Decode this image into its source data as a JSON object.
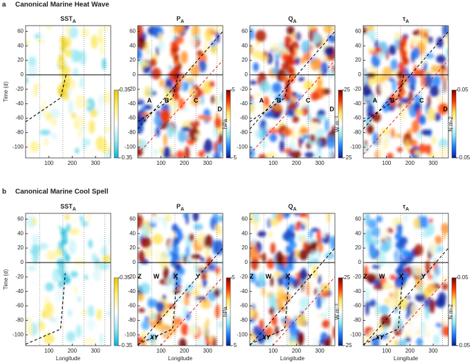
{
  "figure": {
    "rows": [
      {
        "label": "a",
        "title": "Canonical Marine Heat Wave"
      },
      {
        "label": "b",
        "title": "Canonical Marine Cool Spell"
      }
    ]
  },
  "chart_data": [
    {
      "type": "heatmap",
      "title": "SST",
      "title_sub": "A",
      "ylabel": "Time (d)",
      "xlim": [
        0,
        365
      ],
      "xticks": [
        100,
        200,
        300
      ],
      "ylim": [
        -115,
        68
      ],
      "yticks": [
        -100,
        -80,
        -60,
        -40,
        -20,
        0,
        20,
        40,
        60
      ],
      "colorbar": {
        "lim": [
          -0.35,
          0.35
        ],
        "ticks": [
          -0.35,
          0.35
        ]
      },
      "colormap": [
        "#00b4d8",
        "#9ae9f2",
        "#ffffff",
        "#fff07a",
        "#e8c800"
      ]
    },
    {
      "type": "heatmap",
      "title": "P",
      "title_sub": "A",
      "xlim": [
        0,
        365
      ],
      "xticks": [
        100,
        200,
        300
      ],
      "ylim": [
        -115,
        68
      ],
      "yticks": [
        -100,
        -80,
        -60,
        -40,
        -20,
        0,
        20,
        40,
        60
      ],
      "colorbar": {
        "lim": [
          -5,
          5
        ],
        "ticks": [
          -5,
          5
        ],
        "label": "hPa"
      },
      "colormap": [
        "#0a1a9a",
        "#1e7fff",
        "#8fe6f2",
        "#ffffff",
        "#ffe55c",
        "#ff3a00",
        "#780000"
      ],
      "annotations": [
        "A",
        "B",
        "C",
        "D"
      ]
    },
    {
      "type": "heatmap",
      "title": "Q",
      "title_sub": "A",
      "xlim": [
        0,
        365
      ],
      "xticks": [
        100,
        200,
        300
      ],
      "ylim": [
        -115,
        68
      ],
      "yticks": [
        -100,
        -80,
        -60,
        -40,
        -20,
        0,
        20,
        40,
        60
      ],
      "colorbar": {
        "lim": [
          -25,
          25
        ],
        "ticks": [
          -25,
          25
        ],
        "label": "W m⁻²"
      },
      "colormap": [
        "#0a1a9a",
        "#1e7fff",
        "#8fe6f2",
        "#ffffff",
        "#ffe55c",
        "#ff3a00",
        "#780000"
      ],
      "annotations": [
        "A",
        "B",
        "C",
        "D"
      ]
    },
    {
      "type": "heatmap",
      "title": "τ",
      "title_sub": "A",
      "xlim": [
        0,
        365
      ],
      "xticks": [
        100,
        200,
        300
      ],
      "ylim": [
        -115,
        68
      ],
      "yticks": [
        -100,
        -80,
        -60,
        -40,
        -20,
        0,
        20,
        40,
        60
      ],
      "colorbar": {
        "lim": [
          -0.05,
          0.05
        ],
        "ticks": [
          -0.05,
          0.05
        ],
        "label": "N m-2"
      },
      "colormap": [
        "#0a1a9a",
        "#1e7fff",
        "#8fe6f2",
        "#ffffff",
        "#ffe55c",
        "#ff3a00",
        "#780000"
      ],
      "annotations": [
        "A",
        "B",
        "C",
        "D"
      ]
    },
    {
      "type": "heatmap",
      "title": "SST",
      "title_sub": "A",
      "ylabel": "Time (d)",
      "xlabel": "Longitude",
      "xlim": [
        0,
        365
      ],
      "xticks": [
        100,
        200,
        300
      ],
      "ylim": [
        -115,
        68
      ],
      "yticks": [
        -100,
        -80,
        -60,
        -40,
        -20,
        0,
        20,
        40,
        60
      ],
      "colorbar": {
        "lim": [
          -0.35,
          0.35
        ],
        "ticks": [
          -0.35,
          0.35
        ]
      },
      "colormap": [
        "#00b4d8",
        "#9ae9f2",
        "#ffffff",
        "#fff07a",
        "#e8c800"
      ]
    },
    {
      "type": "heatmap",
      "title": "P",
      "title_sub": "A",
      "xlabel": "Longitude",
      "xlim": [
        0,
        365
      ],
      "xticks": [
        100,
        200,
        300
      ],
      "ylim": [
        -115,
        68
      ],
      "yticks": [
        -100,
        -80,
        -60,
        -40,
        -20,
        0,
        20,
        40,
        60
      ],
      "colorbar": {
        "lim": [
          -5,
          5
        ],
        "ticks": [
          -5,
          5
        ],
        "label": "hPa"
      },
      "colormap": [
        "#0a1a9a",
        "#1e7fff",
        "#8fe6f2",
        "#ffffff",
        "#ffe55c",
        "#ff3a00",
        "#780000"
      ],
      "annotations": [
        "Z",
        "W",
        "X",
        "Y",
        "XY"
      ]
    },
    {
      "type": "heatmap",
      "title": "Q",
      "title_sub": "A",
      "xlabel": "Longitude",
      "xlim": [
        0,
        365
      ],
      "xticks": [
        100,
        200,
        300
      ],
      "ylim": [
        -115,
        68
      ],
      "yticks": [
        -100,
        -80,
        -60,
        -40,
        -20,
        0,
        20,
        40,
        60
      ],
      "colorbar": {
        "lim": [
          -25,
          25
        ],
        "ticks": [
          -25,
          25
        ],
        "label": "W m⁻²"
      },
      "colormap": [
        "#0a1a9a",
        "#1e7fff",
        "#8fe6f2",
        "#ffffff",
        "#ffe55c",
        "#ff3a00",
        "#780000"
      ],
      "annotations": [
        "Z",
        "W",
        "X",
        "Y",
        "XY"
      ]
    },
    {
      "type": "heatmap",
      "title": "τ",
      "title_sub": "A",
      "xlabel": "Longitude",
      "xlim": [
        0,
        365
      ],
      "xticks": [
        100,
        200,
        300
      ],
      "ylim": [
        -115,
        68
      ],
      "yticks": [
        -100,
        -80,
        -60,
        -40,
        -20,
        0,
        20,
        40,
        60
      ],
      "colorbar": {
        "lim": [
          -0.05,
          0.05
        ],
        "ticks": [
          -0.05,
          0.05
        ],
        "label": "N m-2"
      },
      "colormap": [
        "#0a1a9a",
        "#1e7fff",
        "#8fe6f2",
        "#ffffff",
        "#ffe55c",
        "#ff3a00",
        "#780000"
      ],
      "annotations": [
        "Z",
        "W",
        "X",
        "Y",
        "XY"
      ]
    }
  ]
}
